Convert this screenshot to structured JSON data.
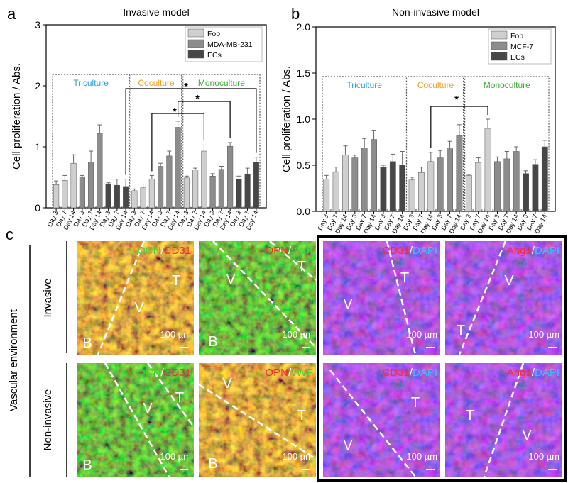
{
  "chart_data": [
    {
      "type": "bar",
      "panel_label": "a",
      "title": "Invasive model",
      "y_label": "Cell proliferation / Abs.",
      "ylim": [
        0,
        3
      ],
      "yticks": [
        0,
        1,
        2,
        3
      ],
      "groups": [
        {
          "label": "Triculture",
          "color": "#2a9fe0",
          "categories": [
            "Day 3",
            "Day 7",
            "Day 14",
            "Day 3",
            "Day 7",
            "Day 14",
            "Day 3",
            "Day 7",
            "Day 14"
          ]
        },
        {
          "label": "Coculture",
          "color": "#f0a020",
          "categories": [
            "Day 3",
            "Day 7",
            "Day 14",
            "Day 3",
            "Day 7",
            "Day 14"
          ]
        },
        {
          "label": "Monoculture",
          "color": "#3aaa35",
          "categories": [
            "Day 3",
            "Day 7",
            "Day 14",
            "Day 3",
            "Day 7",
            "Day 14",
            "Day 3",
            "Day 7",
            "Day 14"
          ]
        }
      ],
      "series": [
        {
          "name": "Fob",
          "color": "#cfcfcf",
          "values": [
            0.38,
            0.45,
            0.73,
            null,
            null,
            null,
            null,
            null,
            null,
            0.28,
            0.33,
            0.47,
            null,
            null,
            null,
            0.49,
            0.62,
            0.93,
            null,
            null,
            null,
            null,
            null,
            null
          ],
          "errors": [
            0.06,
            0.08,
            0.14,
            null,
            null,
            null,
            null,
            null,
            null,
            0.03,
            0.06,
            0.06,
            null,
            null,
            null,
            0.03,
            0.03,
            0.1,
            null,
            null,
            null,
            null,
            null,
            null
          ]
        },
        {
          "name": "MDA-MB-231",
          "color": "#8c8c8c",
          "values": [
            null,
            null,
            null,
            0.51,
            0.75,
            1.22,
            null,
            null,
            null,
            null,
            null,
            null,
            0.68,
            0.85,
            1.32,
            null,
            null,
            null,
            0.52,
            0.63,
            1.01,
            null,
            null,
            null
          ],
          "errors": [
            null,
            null,
            null,
            0.02,
            0.18,
            0.14,
            null,
            null,
            null,
            null,
            null,
            null,
            0.05,
            0.08,
            0.1,
            null,
            null,
            null,
            0.04,
            0.05,
            0.06,
            null,
            null,
            null
          ]
        },
        {
          "name": "ECs",
          "color": "#474747",
          "values": [
            null,
            null,
            null,
            null,
            null,
            null,
            0.39,
            0.37,
            0.35,
            null,
            null,
            null,
            null,
            null,
            null,
            null,
            null,
            null,
            null,
            null,
            null,
            0.47,
            0.55,
            0.75
          ],
          "errors": [
            null,
            null,
            null,
            null,
            null,
            null,
            0.02,
            0.1,
            0.12,
            null,
            null,
            null,
            null,
            null,
            null,
            null,
            null,
            null,
            null,
            null,
            null,
            0.05,
            0.1,
            0.08
          ]
        }
      ],
      "significance": [
        "*",
        "*",
        "*"
      ]
    },
    {
      "type": "bar",
      "panel_label": "b",
      "title": "Non-invasive model",
      "y_label": "Cell proliferation / Abs.",
      "ylim": [
        0,
        2
      ],
      "yticks": [
        {
          "value": 0,
          "label": "0.0"
        },
        {
          "value": 0.5,
          "label": "0.5"
        },
        {
          "value": 1,
          "label": "1.0"
        },
        {
          "value": 1.5,
          "label": "1.5"
        },
        {
          "value": 2,
          "label": "2.0"
        }
      ],
      "groups": [
        {
          "label": "Triculture",
          "color": "#2a9fe0",
          "categories": [
            "Day 3",
            "Day 7",
            "Day 14",
            "Day 3",
            "Day 7",
            "Day 14",
            "Day 3",
            "Day 7",
            "Day 14"
          ]
        },
        {
          "label": "Coculture",
          "color": "#f0a020",
          "categories": [
            "Day 3",
            "Day 7",
            "Day 14",
            "Day 3",
            "Day 7",
            "Day 14"
          ]
        },
        {
          "label": "Monoculture",
          "color": "#3aaa35",
          "categories": [
            "Day 3",
            "Day 7",
            "Day 14",
            "Day 3",
            "Day 7",
            "Day 14",
            "Day 3",
            "Day 7",
            "Day 14"
          ]
        }
      ],
      "series": [
        {
          "name": "Fob",
          "color": "#cfcfcf",
          "values": [
            0.35,
            0.43,
            0.61,
            null,
            null,
            null,
            null,
            null,
            null,
            0.34,
            0.42,
            0.54,
            null,
            null,
            null,
            0.39,
            0.53,
            0.9,
            null,
            null,
            null,
            null,
            null,
            null
          ],
          "errors": [
            0.04,
            0.05,
            0.1,
            null,
            null,
            null,
            null,
            null,
            null,
            0.03,
            0.06,
            0.1,
            null,
            null,
            null,
            0.01,
            0.05,
            0.1,
            null,
            null,
            null,
            null,
            null,
            null
          ]
        },
        {
          "name": "MCF-7",
          "color": "#8c8c8c",
          "values": [
            null,
            null,
            null,
            0.58,
            0.69,
            0.78,
            null,
            null,
            null,
            null,
            null,
            null,
            0.58,
            0.68,
            0.82,
            null,
            null,
            null,
            0.54,
            0.57,
            0.65,
            null,
            null,
            null
          ],
          "errors": [
            null,
            null,
            null,
            0.03,
            0.1,
            0.1,
            null,
            null,
            null,
            null,
            null,
            null,
            0.08,
            0.08,
            0.12,
            null,
            null,
            null,
            0.05,
            0.08,
            0.05,
            null,
            null,
            null
          ]
        },
        {
          "name": "ECs",
          "color": "#474747",
          "values": [
            null,
            null,
            null,
            null,
            null,
            null,
            0.48,
            0.54,
            0.5,
            null,
            null,
            null,
            null,
            null,
            null,
            null,
            null,
            null,
            null,
            null,
            null,
            0.41,
            0.51,
            0.7
          ],
          "errors": [
            null,
            null,
            null,
            null,
            null,
            null,
            0.02,
            0.08,
            0.15,
            null,
            null,
            null,
            null,
            null,
            null,
            null,
            null,
            null,
            null,
            null,
            null,
            0.03,
            0.05,
            0.07
          ]
        }
      ],
      "significance": [
        "*"
      ]
    }
  ],
  "micrographs": {
    "panel_label": "c",
    "section_label": "Vascular environment",
    "scale_bar": "100 µm",
    "rows": [
      {
        "label": "Invasive",
        "images": [
          {
            "stain": [
              {
                "text": "OCN",
                "color": "#33dd33"
              },
              {
                "text": "/",
                "color": "#ffffff"
              },
              {
                "text": "CD31",
                "color": "#ff2a2a"
              }
            ],
            "regions": [
              "B",
              "V",
              "T"
            ]
          },
          {
            "stain": [
              {
                "text": "OPN",
                "color": "#ff2a2a"
              },
              {
                "text": "/",
                "color": "#ffffff"
              },
              {
                "text": "vWF",
                "color": "#33dd33"
              }
            ],
            "regions": [
              "V",
              "T",
              "B"
            ]
          },
          {
            "stain": [
              {
                "text": "CD31",
                "color": "#ff2a2a"
              },
              {
                "text": "/",
                "color": "#ffffff"
              },
              {
                "text": "DAPI",
                "color": "#2ac8ff"
              }
            ],
            "regions": [
              "V",
              "T"
            ]
          },
          {
            "stain": [
              {
                "text": "Ang1",
                "color": "#ff2a2a"
              },
              {
                "text": "/",
                "color": "#ffffff"
              },
              {
                "text": "DAPI",
                "color": "#2ac8ff"
              }
            ],
            "regions": [
              "V",
              "T"
            ]
          }
        ]
      },
      {
        "label": "Non-invasive",
        "images": [
          {
            "stain": [
              {
                "text": "OCN",
                "color": "#33dd33"
              },
              {
                "text": "/",
                "color": "#ffffff"
              },
              {
                "text": "CD31",
                "color": "#ff2a2a"
              }
            ],
            "regions": [
              "B",
              "V",
              "T"
            ]
          },
          {
            "stain": [
              {
                "text": "OPN",
                "color": "#ff2a2a"
              },
              {
                "text": "/",
                "color": "#ffffff"
              },
              {
                "text": "vWF",
                "color": "#33dd33"
              }
            ],
            "regions": [
              "V",
              "T",
              "B"
            ]
          },
          {
            "stain": [
              {
                "text": "CD31",
                "color": "#ff2a2a"
              },
              {
                "text": "/",
                "color": "#ffffff"
              },
              {
                "text": "DAPI",
                "color": "#2ac8ff"
              }
            ],
            "regions": [
              "T",
              "V"
            ]
          },
          {
            "stain": [
              {
                "text": "Ang1",
                "color": "#ff2a2a"
              },
              {
                "text": "/",
                "color": "#ffffff"
              },
              {
                "text": "DAPI",
                "color": "#2ac8ff"
              }
            ],
            "regions": [
              "T",
              "V"
            ]
          }
        ]
      }
    ]
  }
}
